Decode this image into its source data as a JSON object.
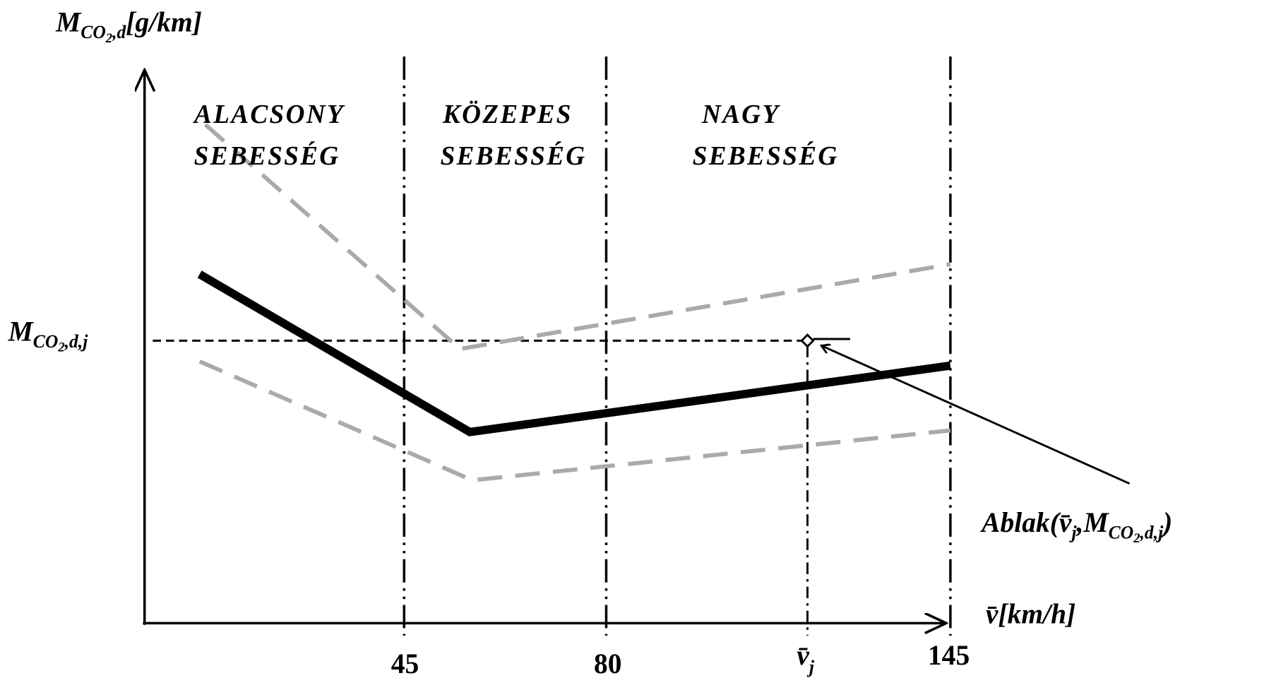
{
  "y_axis_label": {
    "symbol": "M",
    "sub": "CO",
    "sub2": "2",
    "sub3": ",d",
    "unit": "[g/km]"
  },
  "y_value_label": {
    "symbol": "M",
    "sub": "CO",
    "sub2": "2",
    "sub3": ",d,j"
  },
  "x_axis_label": {
    "symbol": "v̄",
    "unit": "[km/h]"
  },
  "zones": [
    {
      "line1": "ALACSONY",
      "line2": "SEBESSÉG"
    },
    {
      "line1": "KÖZEPES",
      "line2": "SEBESSÉG"
    },
    {
      "line1": "NAGY",
      "line2": "SEBESSÉG"
    }
  ],
  "x_ticks": [
    "45",
    "80",
    "145"
  ],
  "x_point_label": {
    "symbol": "v̄",
    "sub": "j"
  },
  "annotation": {
    "text": "Ablak(",
    "symbol": "v̄",
    "sub": "j",
    "sep": ",",
    "symbol2": "M",
    "sub2": "CO",
    "sub2b": "2",
    "sub2c": ",d,j",
    "close": ")"
  }
}
